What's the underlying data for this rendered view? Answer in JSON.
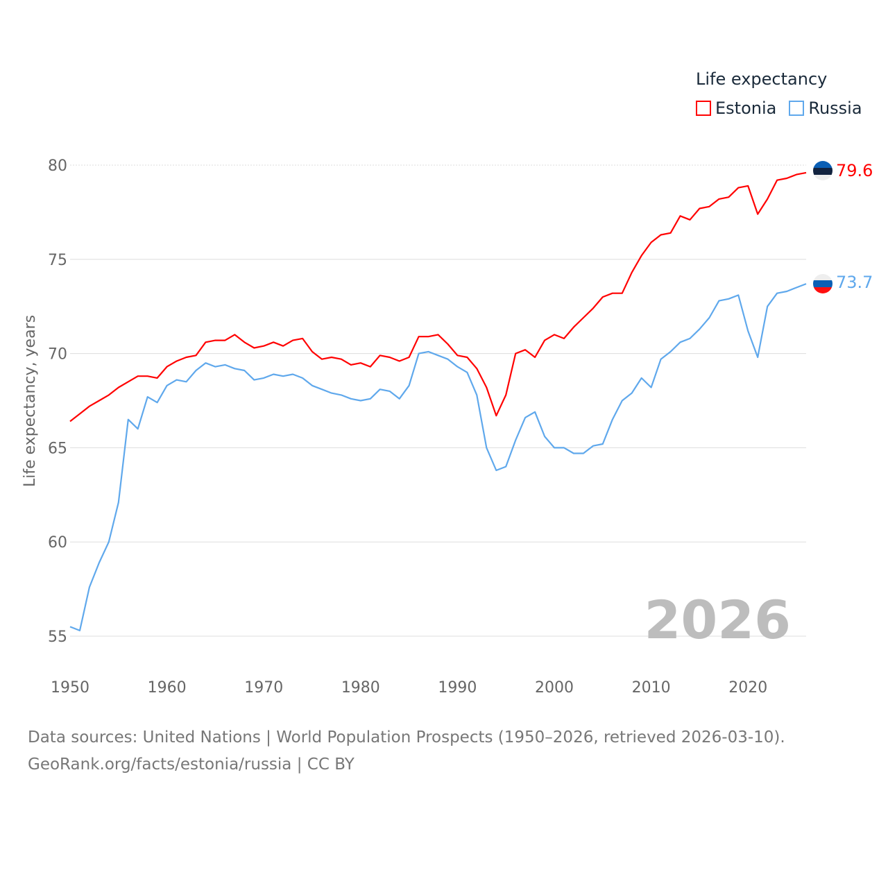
{
  "chart_data": {
    "type": "line",
    "legend_title": "Life expectancy",
    "ylabel": "Life expectancy, years",
    "xlabel": "",
    "xlim": [
      1950,
      2026
    ],
    "ylim": [
      55,
      80
    ],
    "x_ticks": [
      "1950",
      "1960",
      "1970",
      "1980",
      "1990",
      "2000",
      "2010",
      "2020"
    ],
    "y_ticks": [
      "55",
      "60",
      "65",
      "70",
      "75",
      "80"
    ],
    "grid": true,
    "legend_position": "top-right",
    "year_label": "2026",
    "x": [
      1950,
      1951,
      1952,
      1953,
      1954,
      1955,
      1956,
      1957,
      1958,
      1959,
      1960,
      1961,
      1962,
      1963,
      1964,
      1965,
      1966,
      1967,
      1968,
      1969,
      1970,
      1971,
      1972,
      1973,
      1974,
      1975,
      1976,
      1977,
      1978,
      1979,
      1980,
      1981,
      1982,
      1983,
      1984,
      1985,
      1986,
      1987,
      1988,
      1989,
      1990,
      1991,
      1992,
      1993,
      1994,
      1995,
      1996,
      1997,
      1998,
      1999,
      2000,
      2001,
      2002,
      2003,
      2004,
      2005,
      2006,
      2007,
      2008,
      2009,
      2010,
      2011,
      2012,
      2013,
      2014,
      2015,
      2016,
      2017,
      2018,
      2019,
      2020,
      2021,
      2022,
      2023,
      2024,
      2025,
      2026
    ],
    "series": [
      {
        "name": "Estonia",
        "color": "#ff0000",
        "end_label": "79.6",
        "values": [
          66.4,
          66.8,
          67.2,
          67.5,
          67.8,
          68.2,
          68.5,
          68.8,
          68.8,
          68.7,
          69.3,
          69.6,
          69.8,
          69.9,
          70.6,
          70.7,
          70.7,
          71.0,
          70.6,
          70.3,
          70.4,
          70.6,
          70.4,
          70.7,
          70.8,
          70.1,
          69.7,
          69.8,
          69.7,
          69.4,
          69.5,
          69.3,
          69.9,
          69.8,
          69.6,
          69.8,
          70.9,
          70.9,
          71.0,
          70.5,
          69.9,
          69.8,
          69.2,
          68.2,
          66.7,
          67.8,
          70.0,
          70.2,
          69.8,
          70.7,
          71.0,
          70.8,
          71.4,
          71.9,
          72.4,
          73.0,
          73.2,
          73.2,
          74.3,
          75.2,
          75.9,
          76.3,
          76.4,
          77.3,
          77.1,
          77.7,
          77.8,
          78.2,
          78.3,
          78.8,
          78.9,
          77.4,
          78.2,
          79.2,
          79.3,
          79.5,
          79.6
        ]
      },
      {
        "name": "Russia",
        "color": "#5fa8ec",
        "end_label": "73.7",
        "values": [
          55.5,
          55.3,
          57.6,
          58.9,
          60.0,
          62.1,
          66.5,
          66.0,
          67.7,
          67.4,
          68.3,
          68.6,
          68.5,
          69.1,
          69.5,
          69.3,
          69.4,
          69.2,
          69.1,
          68.6,
          68.7,
          68.9,
          68.8,
          68.9,
          68.7,
          68.3,
          68.1,
          67.9,
          67.8,
          67.6,
          67.5,
          67.6,
          68.1,
          68.0,
          67.6,
          68.3,
          70.0,
          70.1,
          69.9,
          69.7,
          69.3,
          69.0,
          67.8,
          65.0,
          63.8,
          64.0,
          65.4,
          66.6,
          66.9,
          65.6,
          65.0,
          65.0,
          64.7,
          64.7,
          65.1,
          65.2,
          66.5,
          67.5,
          67.9,
          68.7,
          68.2,
          69.7,
          70.1,
          70.6,
          70.8,
          71.3,
          71.9,
          72.8,
          72.9,
          73.1,
          71.2,
          69.8,
          72.5,
          73.2,
          73.3,
          73.5,
          73.7
        ]
      }
    ]
  },
  "source": {
    "line1": "Data sources: United Nations | World Population Prospects (1950–2026, retrieved 2026-03-10).",
    "line2": "GeoRank.org/facts/estonia/russia | CC BY"
  }
}
